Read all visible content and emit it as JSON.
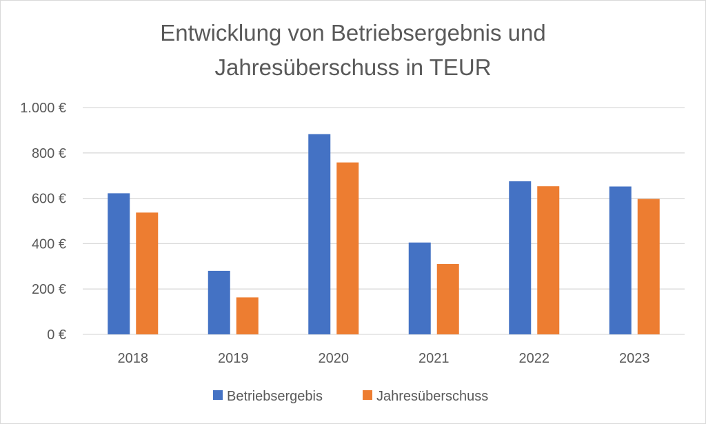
{
  "chart_data": {
    "type": "bar",
    "title_lines": [
      "Entwicklung von Betriebsergebnis und",
      "Jahresüberschuss in TEUR"
    ],
    "categories": [
      "2018",
      "2019",
      "2020",
      "2021",
      "2022",
      "2023"
    ],
    "series": [
      {
        "name": "Betriebsergebis",
        "color": "#4472c4",
        "values": [
          622,
          280,
          883,
          405,
          675,
          652
        ]
      },
      {
        "name": "Jahresüberschuss",
        "color": "#ed7d31",
        "values": [
          537,
          163,
          758,
          310,
          653,
          597
        ]
      }
    ],
    "ylim": [
      0,
      1000
    ],
    "yticks": [
      0,
      200,
      400,
      600,
      800,
      1000
    ],
    "ytick_labels": [
      "0 €",
      "200 €",
      "400 €",
      "600 €",
      "800 €",
      "1.000 €"
    ],
    "grid": true,
    "legend_position": "bottom",
    "gridline_color": "#d9d9d9",
    "text_color": "#595959"
  }
}
